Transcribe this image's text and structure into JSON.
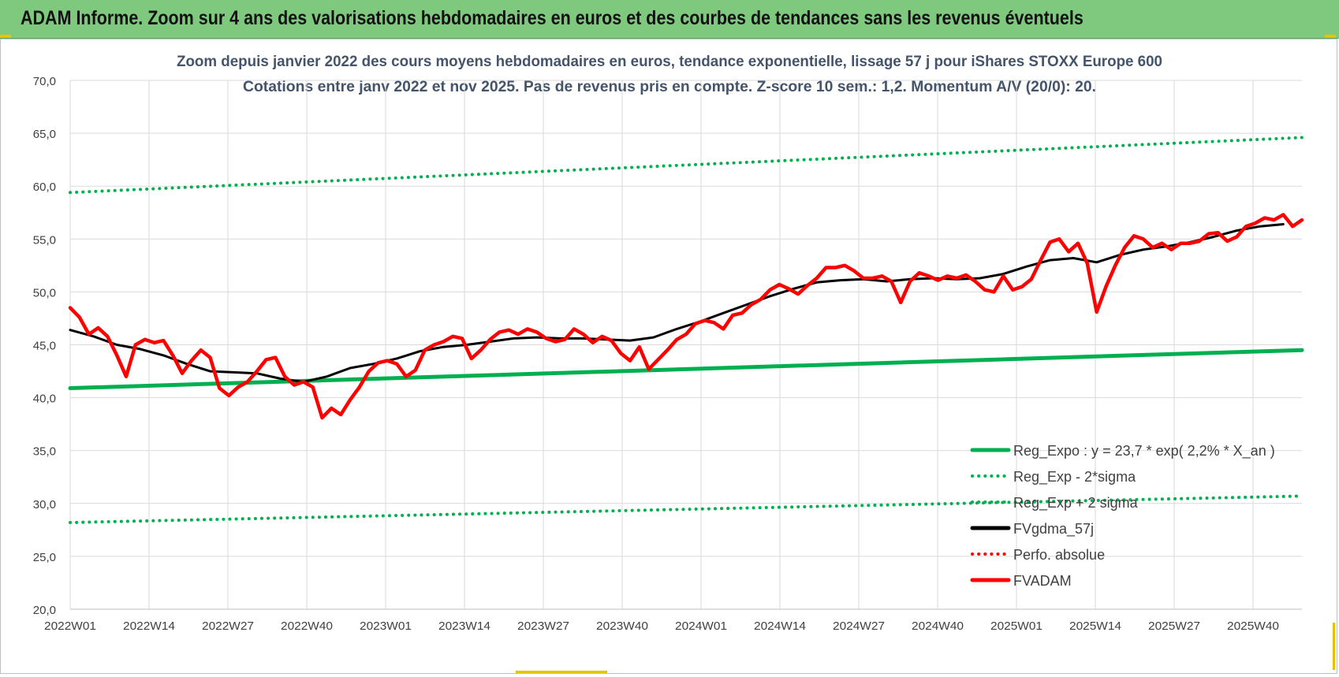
{
  "banner": {
    "title": "ADAM Informe. Zoom sur 4 ans des valorisations hebdomadaires en euros et des courbes de tendances sans les revenus éventuels"
  },
  "chart_data": {
    "type": "line",
    "title": "Zoom depuis janvier 2022 des cours moyens hebdomadaires en euros, tendance exponentielle, lissage 57 j pour iShares STOXX Europe 600",
    "subtitle": "Cotations entre janv 2022 et nov 2025. Pas de revenus pris en compte. Z-score 10 sem.: 1,2. Momentum A/V (20/0): 20.",
    "xlabel": "",
    "ylabel": "",
    "ylim": [
      20,
      70
    ],
    "yticks": [
      "70,0",
      "65,0",
      "60,0",
      "55,0",
      "50,0",
      "45,0",
      "40,0",
      "35,0",
      "30,0",
      "25,0",
      "20,0"
    ],
    "x_tick_labels": [
      "2022W01",
      "2022W14",
      "2022W27",
      "2022W40",
      "2023W01",
      "2023W14",
      "2023W27",
      "2023W40",
      "2024W01",
      "2024W14",
      "2024W27",
      "2024W40",
      "2025W01",
      "2025W14",
      "2025W27",
      "2025W40"
    ],
    "weeks_count": 205,
    "grid": true,
    "legend_position": "bottom-right",
    "series": [
      {
        "name": "Reg_Expo : y = 23,7 * exp( 2,2% *  X_an )",
        "color": "#00b050",
        "style": "solid",
        "points": [
          [
            0,
            40.9
          ],
          [
            204,
            44.5
          ]
        ]
      },
      {
        "name": "Reg_Exp - 2*sigma",
        "color": "#00b050",
        "style": "dotted",
        "points": [
          [
            0,
            28.2
          ],
          [
            204,
            30.7
          ]
        ]
      },
      {
        "name": "Reg_Exp + 2 sigma",
        "color": "#00b050",
        "style": "dotted",
        "points": [
          [
            0,
            59.4
          ],
          [
            204,
            64.6
          ]
        ]
      },
      {
        "name": "FVgdma_57j",
        "color": "#000000",
        "style": "solid",
        "points": [
          [
            0,
            46.4
          ],
          [
            5,
            45.8
          ],
          [
            10,
            45.0
          ],
          [
            15,
            44.6
          ],
          [
            20,
            44.0
          ],
          [
            25,
            43.2
          ],
          [
            30,
            42.5
          ],
          [
            35,
            42.4
          ],
          [
            40,
            42.3
          ],
          [
            45,
            41.8
          ],
          [
            50,
            41.5
          ],
          [
            55,
            42.0
          ],
          [
            60,
            42.8
          ],
          [
            65,
            43.2
          ],
          [
            70,
            43.7
          ],
          [
            75,
            44.4
          ],
          [
            80,
            44.8
          ],
          [
            85,
            45.0
          ],
          [
            90,
            45.3
          ],
          [
            95,
            45.6
          ],
          [
            100,
            45.7
          ],
          [
            105,
            45.6
          ],
          [
            110,
            45.6
          ],
          [
            115,
            45.5
          ],
          [
            120,
            45.4
          ],
          [
            125,
            45.7
          ],
          [
            130,
            46.5
          ],
          [
            135,
            47.2
          ],
          [
            140,
            48.0
          ],
          [
            145,
            48.8
          ],
          [
            150,
            49.6
          ],
          [
            155,
            50.3
          ],
          [
            160,
            50.9
          ],
          [
            165,
            51.1
          ],
          [
            170,
            51.2
          ],
          [
            175,
            51.0
          ],
          [
            180,
            51.2
          ],
          [
            185,
            51.3
          ],
          [
            190,
            51.2
          ],
          [
            195,
            51.3
          ],
          [
            200,
            51.7
          ],
          [
            205,
            52.4
          ],
          [
            210,
            53.0
          ],
          [
            215,
            53.2
          ],
          [
            220,
            52.8
          ],
          [
            225,
            53.5
          ],
          [
            230,
            54.0
          ],
          [
            235,
            54.3
          ],
          [
            240,
            54.7
          ],
          [
            245,
            55.2
          ],
          [
            250,
            55.8
          ],
          [
            255,
            56.2
          ],
          [
            260,
            56.4
          ]
        ]
      },
      {
        "name": "Perfo. absolue",
        "color": "#ff0000",
        "style": "dotted",
        "points": []
      },
      {
        "name": "FVADAM",
        "color": "#ff0000",
        "style": "solid",
        "points": [
          [
            0,
            48.5
          ],
          [
            2,
            47.6
          ],
          [
            4,
            46.0
          ],
          [
            6,
            46.6
          ],
          [
            8,
            45.8
          ],
          [
            10,
            44.0
          ],
          [
            12,
            42.0
          ],
          [
            14,
            45.0
          ],
          [
            16,
            45.5
          ],
          [
            18,
            45.2
          ],
          [
            20,
            45.4
          ],
          [
            22,
            44.0
          ],
          [
            24,
            42.3
          ],
          [
            26,
            43.5
          ],
          [
            28,
            44.5
          ],
          [
            30,
            43.8
          ],
          [
            32,
            40.9
          ],
          [
            34,
            40.2
          ],
          [
            36,
            41.0
          ],
          [
            38,
            41.5
          ],
          [
            40,
            42.5
          ],
          [
            42,
            43.6
          ],
          [
            44,
            43.8
          ],
          [
            46,
            42.0
          ],
          [
            48,
            41.2
          ],
          [
            50,
            41.5
          ],
          [
            52,
            41.0
          ],
          [
            54,
            38.1
          ],
          [
            56,
            39.0
          ],
          [
            58,
            38.4
          ],
          [
            60,
            39.8
          ],
          [
            62,
            41.0
          ],
          [
            64,
            42.5
          ],
          [
            66,
            43.3
          ],
          [
            68,
            43.5
          ],
          [
            70,
            43.2
          ],
          [
            72,
            42.0
          ],
          [
            74,
            42.6
          ],
          [
            76,
            44.5
          ],
          [
            78,
            45.0
          ],
          [
            80,
            45.3
          ],
          [
            82,
            45.8
          ],
          [
            84,
            45.6
          ],
          [
            86,
            43.7
          ],
          [
            88,
            44.5
          ],
          [
            90,
            45.5
          ],
          [
            92,
            46.2
          ],
          [
            94,
            46.4
          ],
          [
            96,
            46.0
          ],
          [
            98,
            46.5
          ],
          [
            100,
            46.2
          ],
          [
            102,
            45.6
          ],
          [
            104,
            45.3
          ],
          [
            106,
            45.5
          ],
          [
            108,
            46.5
          ],
          [
            110,
            46.0
          ],
          [
            112,
            45.2
          ],
          [
            114,
            45.8
          ],
          [
            116,
            45.4
          ],
          [
            118,
            44.2
          ],
          [
            120,
            43.5
          ],
          [
            122,
            44.8
          ],
          [
            124,
            42.7
          ],
          [
            126,
            43.6
          ],
          [
            128,
            44.5
          ],
          [
            130,
            45.5
          ],
          [
            132,
            46.0
          ],
          [
            134,
            47.0
          ],
          [
            136,
            47.3
          ],
          [
            138,
            47.1
          ],
          [
            140,
            46.5
          ],
          [
            142,
            47.8
          ],
          [
            144,
            48.0
          ],
          [
            146,
            48.8
          ],
          [
            148,
            49.3
          ],
          [
            150,
            50.2
          ],
          [
            152,
            50.7
          ],
          [
            154,
            50.3
          ],
          [
            156,
            49.8
          ],
          [
            158,
            50.6
          ],
          [
            160,
            51.3
          ],
          [
            162,
            52.3
          ],
          [
            164,
            52.3
          ],
          [
            166,
            52.5
          ],
          [
            168,
            52.0
          ],
          [
            170,
            51.3
          ],
          [
            172,
            51.3
          ],
          [
            174,
            51.5
          ],
          [
            176,
            51.0
          ],
          [
            178,
            49.0
          ],
          [
            180,
            51.0
          ],
          [
            182,
            51.8
          ],
          [
            184,
            51.5
          ],
          [
            186,
            51.1
          ],
          [
            188,
            51.5
          ],
          [
            190,
            51.3
          ],
          [
            192,
            51.6
          ],
          [
            194,
            51.0
          ],
          [
            196,
            50.2
          ],
          [
            198,
            50.0
          ],
          [
            200,
            51.5
          ],
          [
            202,
            50.2
          ],
          [
            204,
            50.5
          ],
          [
            206,
            51.2
          ],
          [
            208,
            53.0
          ],
          [
            210,
            54.7
          ],
          [
            212,
            55.0
          ],
          [
            214,
            53.8
          ],
          [
            216,
            54.6
          ],
          [
            218,
            52.7
          ],
          [
            220,
            48.1
          ],
          [
            222,
            50.5
          ],
          [
            224,
            52.5
          ],
          [
            226,
            54.2
          ],
          [
            228,
            55.3
          ],
          [
            230,
            55.0
          ],
          [
            232,
            54.2
          ],
          [
            234,
            54.6
          ],
          [
            236,
            54.0
          ],
          [
            238,
            54.6
          ],
          [
            240,
            54.6
          ],
          [
            242,
            54.8
          ],
          [
            244,
            55.5
          ],
          [
            246,
            55.6
          ],
          [
            248,
            54.8
          ],
          [
            250,
            55.2
          ],
          [
            252,
            56.2
          ],
          [
            254,
            56.5
          ],
          [
            256,
            57.0
          ],
          [
            258,
            56.8
          ],
          [
            260,
            57.3
          ],
          [
            262,
            56.2
          ],
          [
            264,
            56.8
          ]
        ]
      }
    ]
  }
}
